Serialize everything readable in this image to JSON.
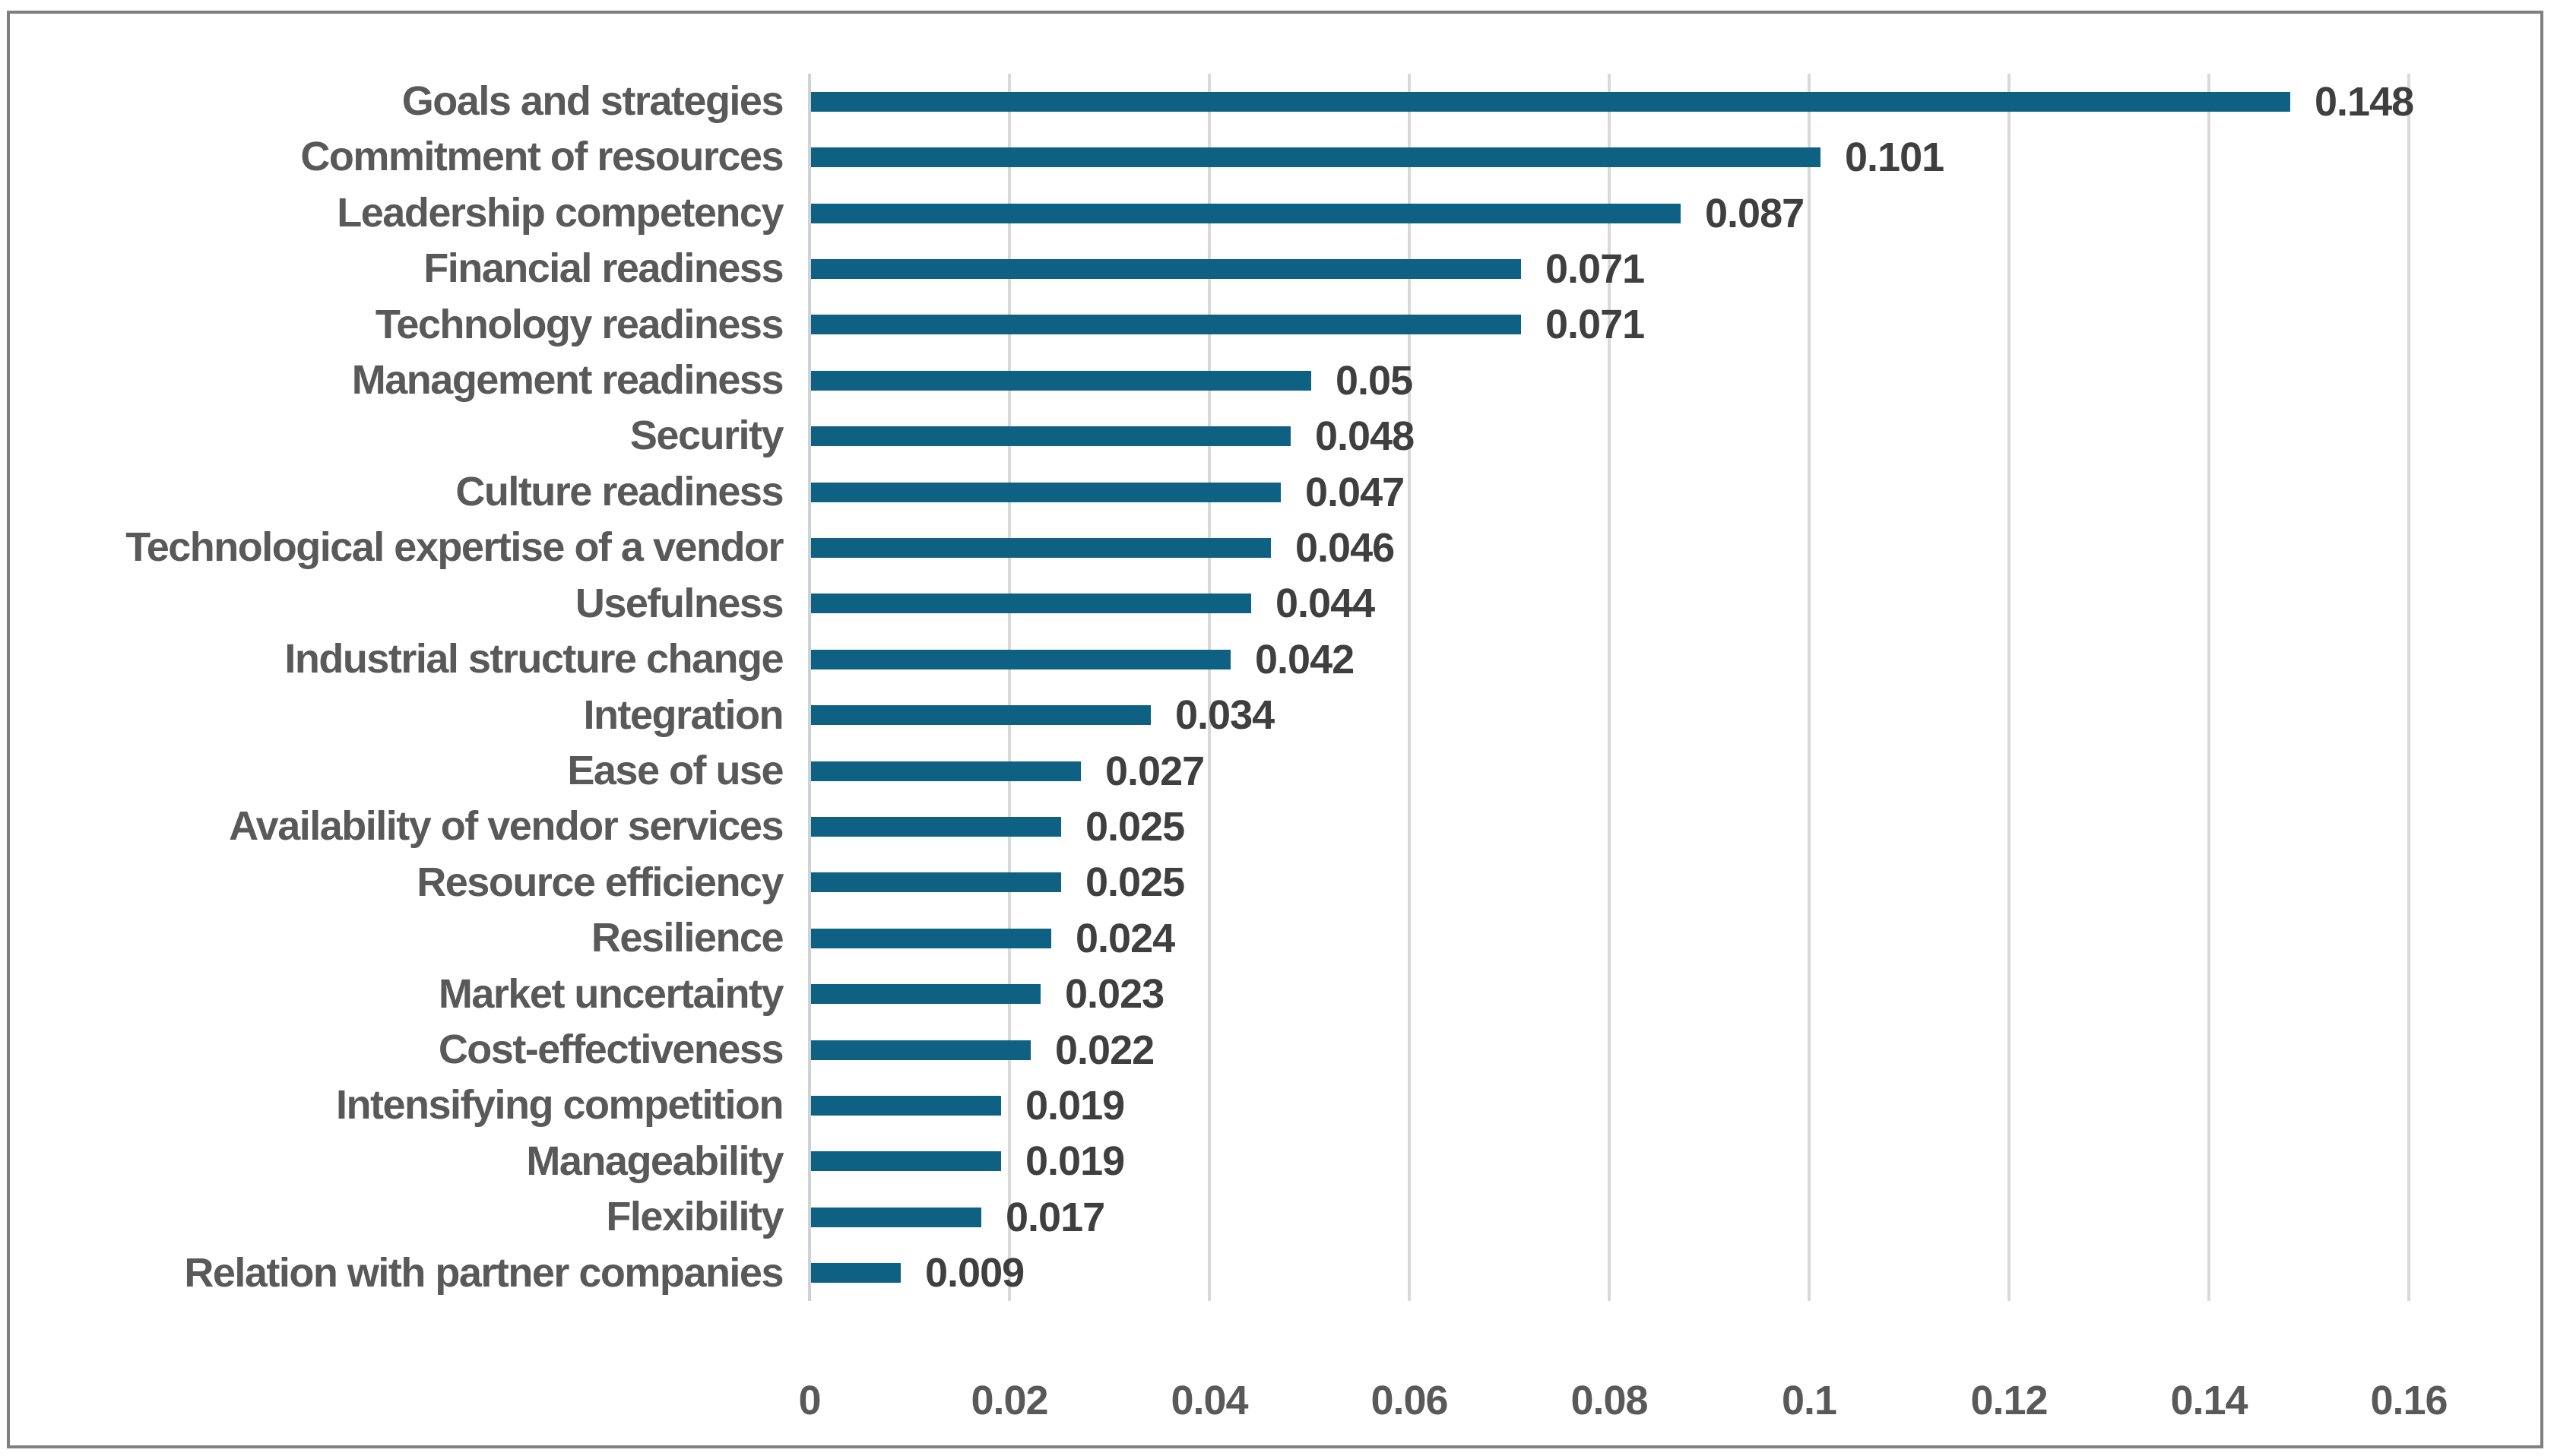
{
  "chart_data": {
    "type": "bar",
    "orientation": "horizontal",
    "title": "",
    "legend": "none",
    "grid": "vertical-only",
    "categories": [
      "Goals and strategies",
      "Commitment of resources",
      "Leadership competency",
      "Financial readiness",
      "Technology readiness",
      "Management readiness",
      "Security",
      "Culture readiness",
      "Technological expertise of a vendor",
      "Usefulness",
      "Industrial structure change",
      "Integration",
      "Ease of use",
      "Availability of vendor services",
      "Resource efficiency",
      "Resilience",
      "Market uncertainty",
      "Cost-effectiveness",
      "Intensifying competition",
      "Manageability",
      "Flexibility",
      "Relation with partner companies"
    ],
    "values": [
      0.148,
      0.101,
      0.087,
      0.071,
      0.071,
      0.05,
      0.048,
      0.047,
      0.046,
      0.044,
      0.042,
      0.034,
      0.027,
      0.025,
      0.025,
      0.024,
      0.023,
      0.022,
      0.019,
      0.019,
      0.017,
      0.009
    ],
    "value_labels": [
      "0.148",
      "0.101",
      "0.087",
      "0.071",
      "0.071",
      "0.05",
      "0.048",
      "0.047",
      "0.046",
      "0.044",
      "0.042",
      "0.034",
      "0.027",
      "0.025",
      "0.025",
      "0.024",
      "0.023",
      "0.022",
      "0.019",
      "0.019",
      "0.017",
      "0.009"
    ],
    "x_axis": {
      "min": 0,
      "max": 0.16,
      "tick_step": 0.02,
      "tick_labels": [
        "0",
        "0.02",
        "0.04",
        "0.06",
        "0.08",
        "0.1",
        "0.12",
        "0.14",
        "0.16"
      ]
    },
    "colors": {
      "bar": "#0e6183",
      "category_label": "#595959",
      "value_label": "#3f3f3f",
      "tick_label": "#595959",
      "gridline": "#d9d9d9",
      "axis_line": "#ccd3d7",
      "border": "#7f7f7f",
      "background": "#ffffff"
    }
  }
}
